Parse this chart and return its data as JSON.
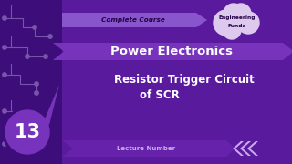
{
  "bg_color": "#5a1a9e",
  "bg_left_color": "#3d0d7a",
  "title_main": "Power Electronics",
  "title_sub1": "Resistor Trigger Circuit",
  "title_sub2": "of SCR",
  "badge_text": "13",
  "top_label": "Complete Course",
  "top_right1": "Engineering",
  "top_right2": "Funda",
  "bottom_label": "Lecture Number",
  "top_banner_color": "#8855cc",
  "main_banner_color": "#7733bb",
  "bot_banner_color": "#6622aa",
  "cloud_color": "#ddc8ee",
  "badge_fill": "#7733bb",
  "badge_outer": "#3d0d7a",
  "text_white": "#ffffff",
  "text_dark": "#220044",
  "text_lavender": "#ccaaee",
  "chevron_color": "#ccaaee",
  "circuit_color": "#7755aa"
}
